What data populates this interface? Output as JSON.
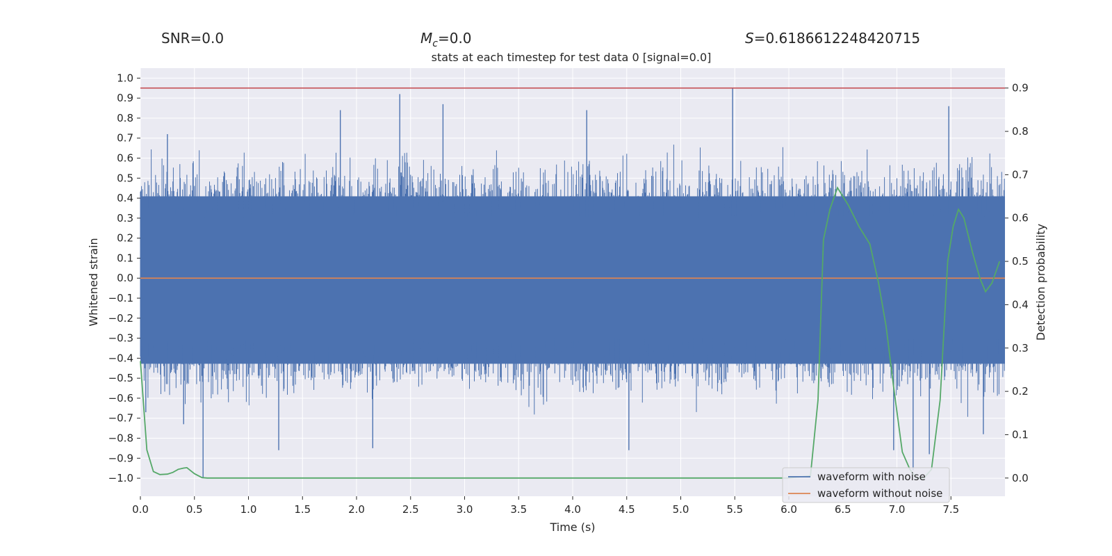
{
  "header": {
    "snr": "SNR=0.0",
    "mc_symbol": "M",
    "mc_sub": "c",
    "mc_value": "=0.0",
    "s_symbol": "S",
    "s_value": "=0.6186612248420715"
  },
  "chart_data": {
    "type": "line",
    "title": "stats at each timestep for test data 0 [signal=0.0]",
    "xlabel": "Time (s)",
    "ylabel": "Whitened strain",
    "y2label": "Detection probability",
    "xlim": [
      0.0,
      8.0
    ],
    "ylim": [
      -1.09,
      1.05
    ],
    "y2lim": [
      -0.042,
      0.946
    ],
    "x_ticks": [
      "0.0",
      "0.5",
      "1.0",
      "1.5",
      "2.0",
      "2.5",
      "3.0",
      "3.5",
      "4.0",
      "4.5",
      "5.0",
      "5.5",
      "6.0",
      "6.5",
      "7.0",
      "7.5"
    ],
    "y_ticks": [
      "1.0",
      "0.9",
      "0.8",
      "0.7",
      "0.6",
      "0.5",
      "0.4",
      "0.3",
      "0.2",
      "0.1",
      "0.0",
      "−0.1",
      "−0.2",
      "−0.3",
      "−0.4",
      "−0.5",
      "−0.6",
      "−0.7",
      "−0.8",
      "−0.9",
      "−1.0"
    ],
    "y2_ticks": [
      "0.9",
      "0.8",
      "0.7",
      "0.6",
      "0.5",
      "0.4",
      "0.3",
      "0.2",
      "0.1",
      "0.0"
    ],
    "threshold": 0.9,
    "colors": {
      "noise": "#4c72b0",
      "clean": "#dd8452",
      "prob": "#55a868",
      "threshold": "#c44e52",
      "bg": "#eaeaf2",
      "grid": "#ffffff"
    },
    "series": [
      {
        "name": "waveform with noise",
        "approx_envelope": {
          "min": -0.69,
          "max": 0.66
        },
        "peaks": [
          {
            "x": 0.05,
            "y": -0.67
          },
          {
            "x": 0.25,
            "y": 0.72
          },
          {
            "x": 0.4,
            "y": -0.73
          },
          {
            "x": 0.58,
            "y": -1.0
          },
          {
            "x": 1.28,
            "y": -0.86
          },
          {
            "x": 1.85,
            "y": 0.84
          },
          {
            "x": 2.15,
            "y": -0.85
          },
          {
            "x": 2.4,
            "y": 0.92
          },
          {
            "x": 2.8,
            "y": 0.87
          },
          {
            "x": 4.13,
            "y": 0.84
          },
          {
            "x": 4.52,
            "y": -0.86
          },
          {
            "x": 5.48,
            "y": 0.95
          },
          {
            "x": 6.97,
            "y": -0.86
          },
          {
            "x": 7.15,
            "y": -0.96
          },
          {
            "x": 7.3,
            "y": -0.88
          },
          {
            "x": 7.48,
            "y": 0.86
          },
          {
            "x": 7.8,
            "y": -0.78
          }
        ]
      },
      {
        "name": "waveform without noise",
        "x": [
          0.0,
          8.0
        ],
        "y": [
          0.0,
          0.0
        ]
      },
      {
        "name": "Detection probability",
        "axis": "right",
        "x": [
          0.0,
          0.06,
          0.12,
          0.18,
          0.25,
          0.3,
          0.35,
          0.4,
          0.43,
          0.5,
          0.57,
          0.62,
          1.0,
          2.0,
          3.0,
          4.0,
          5.0,
          6.0,
          6.2,
          6.27,
          6.32,
          6.38,
          6.45,
          6.55,
          6.65,
          6.75,
          6.83,
          6.9,
          6.97,
          7.05,
          7.12,
          7.18,
          7.25,
          7.32,
          7.4,
          7.47,
          7.52,
          7.57,
          7.62,
          7.7,
          7.77,
          7.82,
          7.88,
          7.95
        ],
        "y": [
          0.27,
          0.065,
          0.015,
          0.008,
          0.009,
          0.013,
          0.02,
          0.023,
          0.024,
          0.01,
          0.001,
          0.0,
          0.0,
          0.0,
          0.0,
          0.0,
          0.0,
          0.0,
          0.005,
          0.18,
          0.55,
          0.62,
          0.67,
          0.63,
          0.58,
          0.54,
          0.45,
          0.35,
          0.21,
          0.06,
          0.02,
          0.0,
          0.0,
          0.02,
          0.18,
          0.5,
          0.58,
          0.62,
          0.6,
          0.52,
          0.46,
          0.43,
          0.45,
          0.5
        ]
      }
    ],
    "legend": {
      "position": "lower-right",
      "entries": [
        "waveform with noise",
        "waveform without noise"
      ]
    }
  }
}
